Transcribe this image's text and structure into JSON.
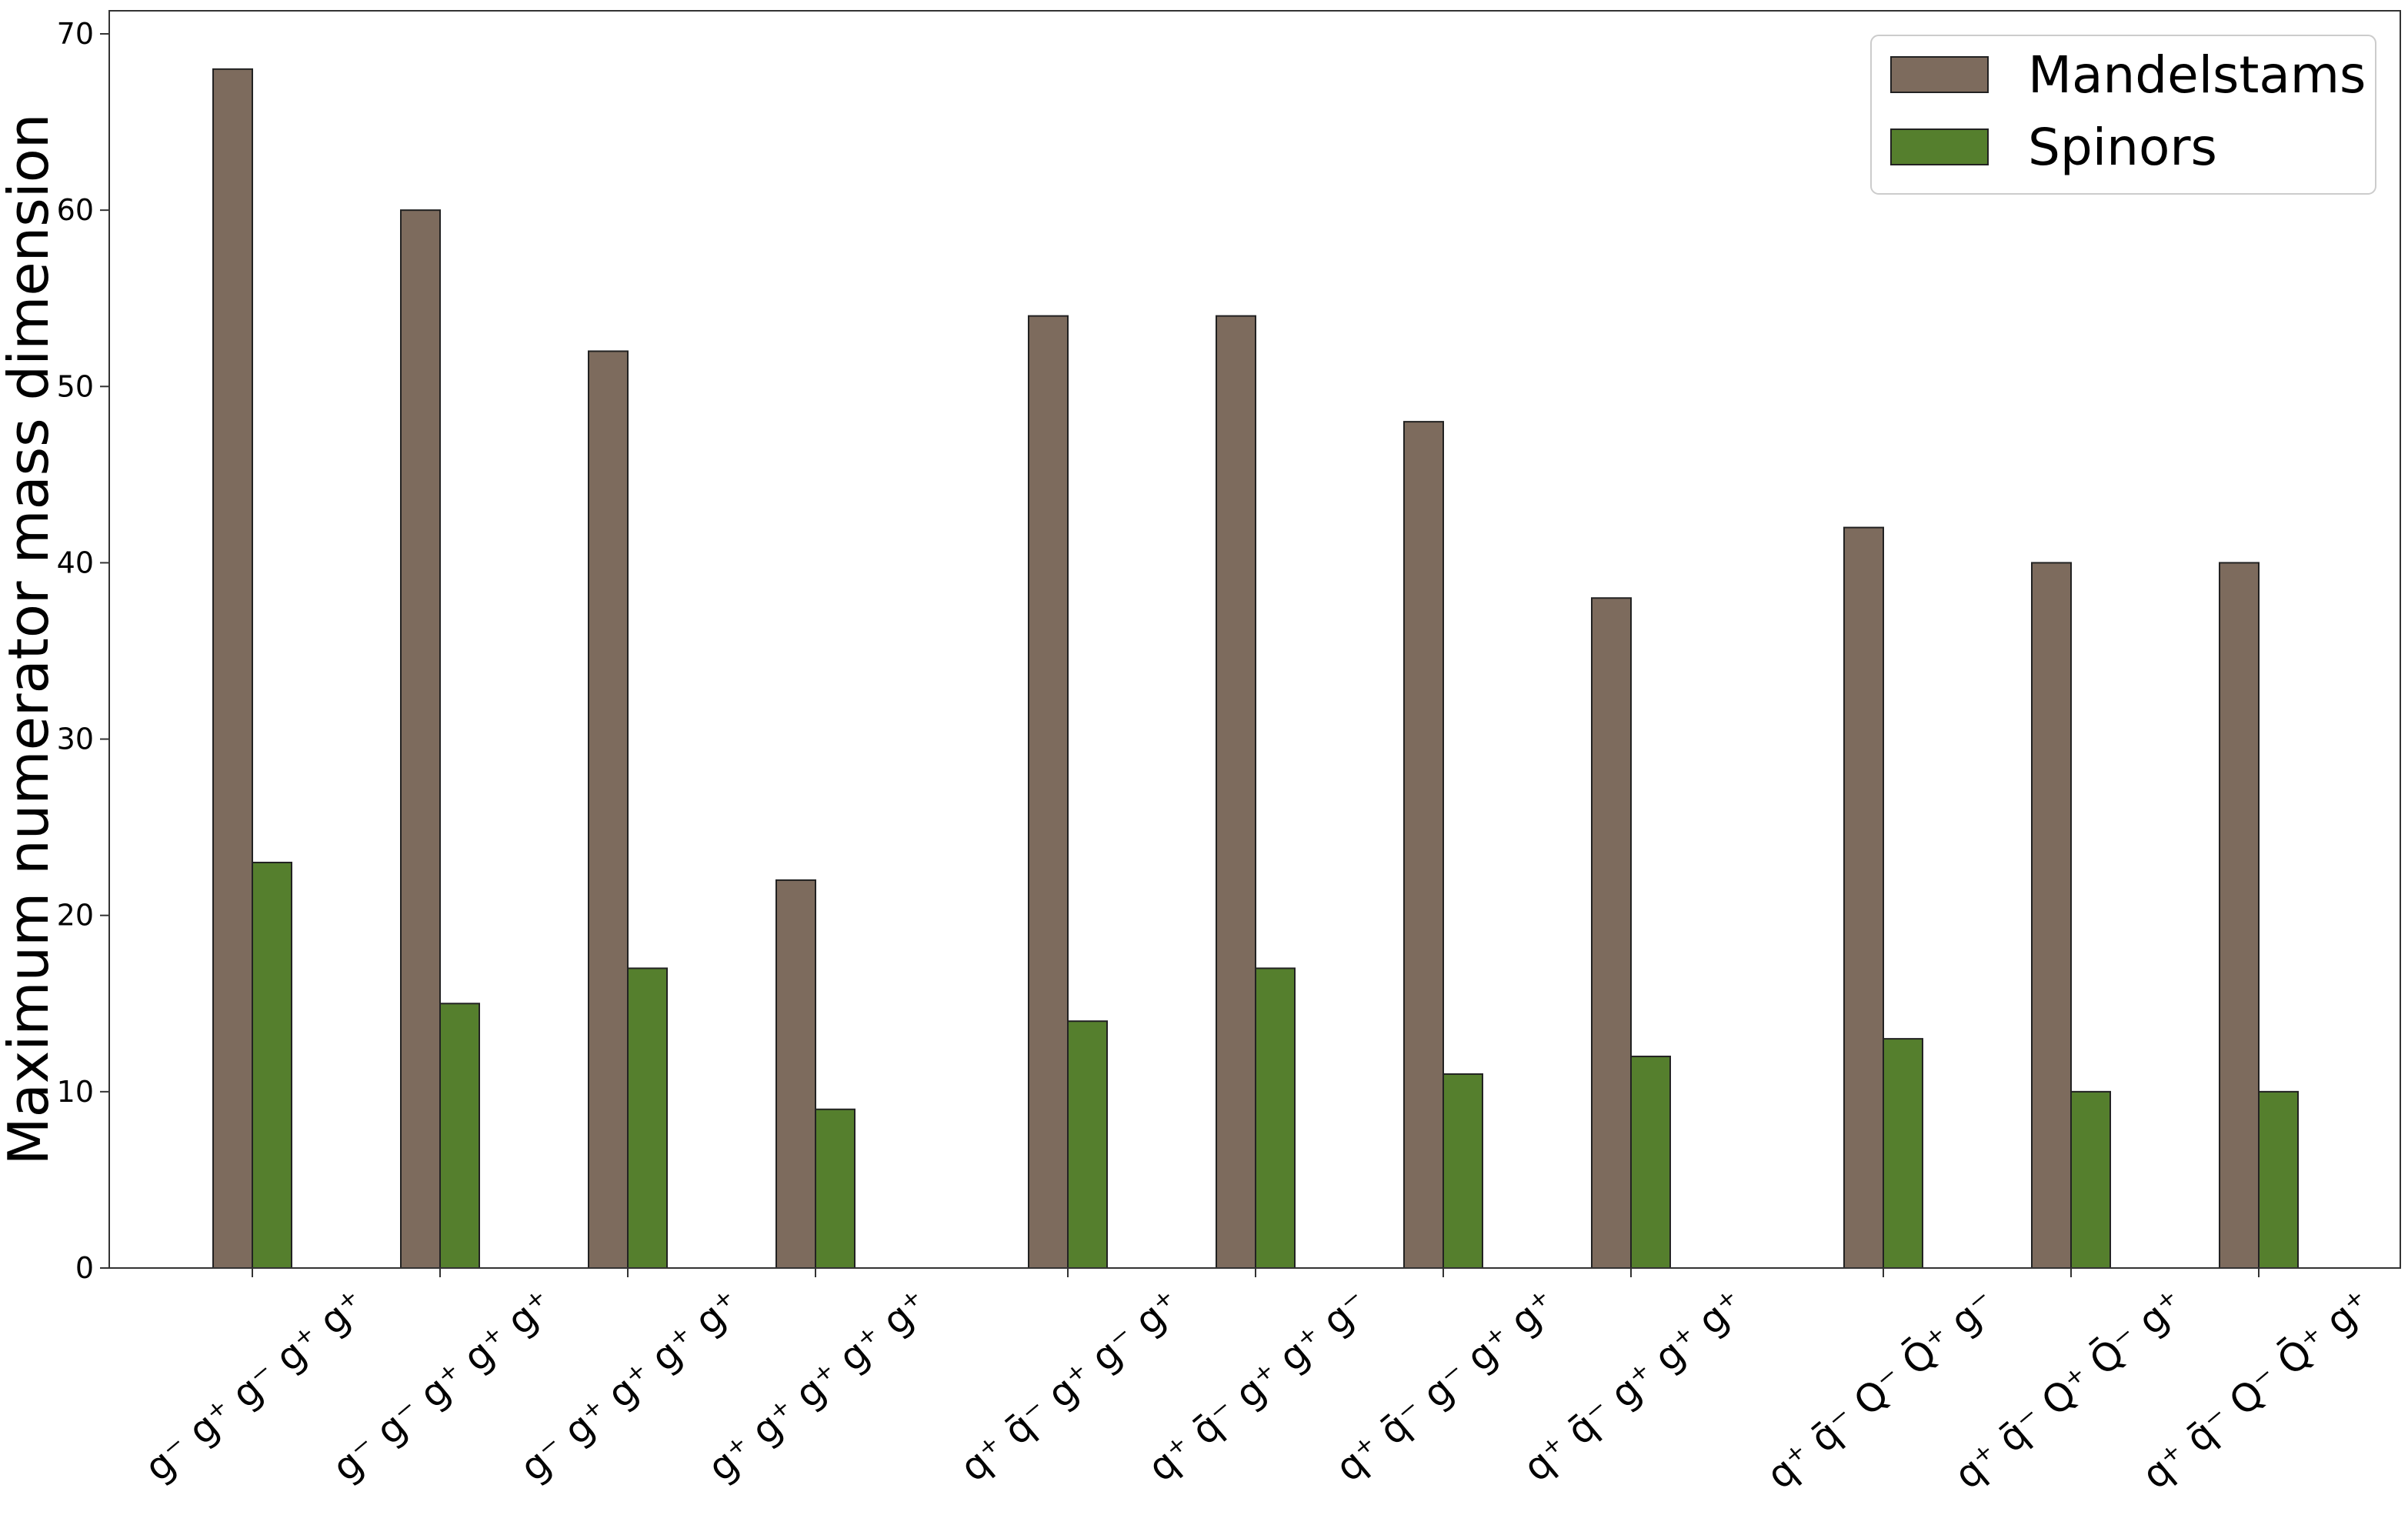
{
  "chart_data": {
    "type": "bar",
    "ylabel": "Maximum numerator mass dimension",
    "xlabel": "",
    "title": "",
    "ylim": [
      0,
      70
    ],
    "yticks": [
      0,
      10,
      20,
      30,
      40,
      50,
      60,
      70
    ],
    "grid": false,
    "legend_position": "top-right",
    "categories": [
      "g⁻ g⁺ g⁻ g⁺ g⁺",
      "g⁻ g⁻ g⁺ g⁺ g⁺",
      "g⁻ g⁺ g⁺ g⁺ g⁺",
      "g⁺ g⁺ g⁺ g⁺ g⁺",
      "q⁺ q̄⁻ g⁺ g⁻ g⁺",
      "q⁺ q̄⁻ g⁺ g⁺ g⁻",
      "q⁺ q̄⁻ g⁻ g⁺ g⁺",
      "q⁺ q̄⁻ g⁺ g⁺ g⁺",
      "q⁺ q̄⁻ Q⁻ Q̄⁺ g⁻",
      "q⁺ q̄⁻ Q⁺ Q̄⁻ g⁺",
      "q⁺ q̄⁻ Q⁻ Q̄⁺ g⁺"
    ],
    "series": [
      {
        "name": "Mandelstams",
        "color": "#7d6b5d",
        "values": [
          68,
          60,
          52,
          22,
          54,
          54,
          48,
          38,
          42,
          40,
          40
        ]
      },
      {
        "name": "Spinors",
        "color": "#557f2d",
        "values": [
          23,
          15,
          17,
          9,
          14,
          17,
          11,
          12,
          13,
          10,
          10
        ]
      }
    ]
  }
}
